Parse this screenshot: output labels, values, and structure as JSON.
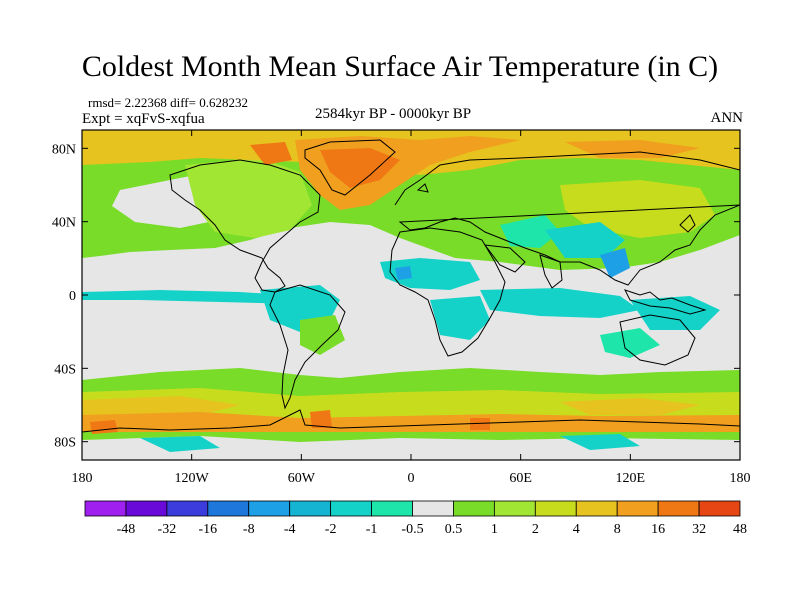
{
  "title": "Coldest Month Mean Surface Air Temperature (in C)",
  "stats": "rmsd= 2.22368 diff= 0.628232",
  "experiment": "Expt = xqFvS-xqfua",
  "period": "2584kyr BP - 0000kyr BP",
  "season": "ANN",
  "lat_ticks": [
    "80N",
    "40N",
    "0",
    "40S",
    "80S"
  ],
  "lon_ticks": [
    "180",
    "120W",
    "60W",
    "0",
    "60E",
    "120E",
    "180"
  ],
  "colorbar": {
    "labels": [
      "-48",
      "-32",
      "-16",
      "-8",
      "-4",
      "-2",
      "-1",
      "-0.5",
      "0.5",
      "1",
      "2",
      "4",
      "8",
      "16",
      "32",
      "48"
    ],
    "colors": [
      "#a020f0",
      "#6a0ad8",
      "#3c3cdc",
      "#1e78dc",
      "#1ea0e6",
      "#14b4d2",
      "#14d2c8",
      "#1ee6aa",
      "#e6e6e6",
      "#78dc28",
      "#a0e632",
      "#c8dc1e",
      "#e6c31e",
      "#f0a01e",
      "#f07814",
      "#e64614"
    ]
  },
  "colors": {
    "neutral": "#e6e6e6",
    "green": "#78dc28",
    "yellow_green": "#a0e632",
    "olive": "#c8dc1e",
    "yellow": "#e6c31e",
    "orange": "#f0a01e",
    "dark_orange": "#f07814",
    "red_orange": "#e64614",
    "cyan": "#14d2c8",
    "teal": "#1ee6aa",
    "blue": "#1ea0e6"
  }
}
